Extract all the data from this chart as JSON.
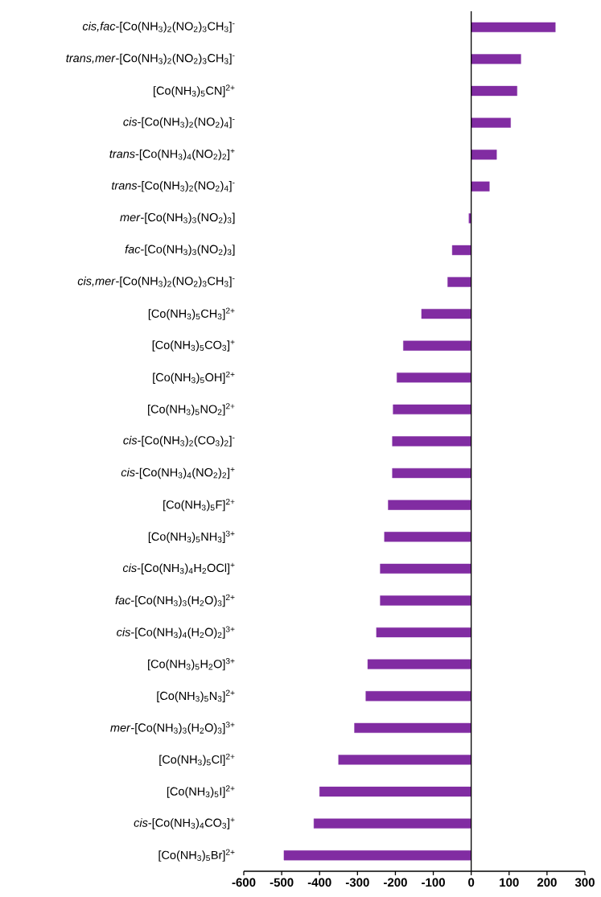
{
  "chart_data": {
    "type": "bar",
    "orientation": "horizontal",
    "color": "#812ca2",
    "categories": [
      "*cis,fac*-[Co(NH$_{3}$)$_{2}$(NO$_{2}$)$_{3}$CH$_{3}$]$^{-}$",
      "*trans,mer*-[Co(NH$_{3}$)$_{2}$(NO$_{2}$)$_{3}$CH$_{3}$]$^{-}$",
      "[Co(NH$_{3}$)$_{5}$CN]$^{2+}$",
      "*cis*-[Co(NH$_{3}$)$_{2}$(NO$_{2}$)$_{4}$]$^{-}$",
      "*trans*-[Co(NH$_{3}$)$_{4}$(NO$_{2}$)$_{2}$]$^{+}$",
      "*trans*-[Co(NH$_{3}$)$_{2}$(NO$_{2}$)$_{4}$]$^{-}$",
      "*mer*-[Co(NH$_{3}$)$_{3}$(NO$_{2}$)$_{3}$]",
      "*fac*-[Co(NH$_{3}$)$_{3}$(NO$_{2}$)$_{3}$]",
      "*cis,mer*-[Co(NH$_{3}$)$_{2}$(NO$_{2}$)$_{3}$CH$_{3}$]$^{-}$",
      "[Co(NH$_{3}$)$_{5}$CH$_{3}$]$^{2+}$",
      "[Co(NH$_{3}$)$_{5}$CO$_{3}$]$^{+}$",
      "[Co(NH$_{3}$)$_{5}$OH]$^{2+}$",
      "[Co(NH$_{3}$)$_{5}$NO$_{2}$]$^{2+}$",
      "*cis*-[Co(NH$_{3}$)$_{2}$(CO$_{3}$)$_{2}$]$^{-}$",
      "*cis*-[Co(NH$_{3}$)$_{4}$(NO$_{2}$)$_{2}$]$^{+}$",
      "[Co(NH$_{3}$)$_{5}$F]$^{2+}$",
      "[Co(NH$_{3}$)$_{5}$NH$_{3}$]$^{3+}$",
      "*cis*-[Co(NH$_{3}$)$_{4}$H$_{2}$OCl]$^{+}$",
      "*fac*-[Co(NH$_{3}$)$_{3}$(H$_{2}$O)$_{3}$]$^{2+}$",
      "*cis*-[Co(NH$_{3}$)$_{4}$(H$_{2}$O)$_{2}$]$^{3+}$",
      "[Co(NH$_{3}$)$_{5}$H$_{2}$O]$^{3+}$",
      "[Co(NH$_{3}$)$_{5}$N$_{3}$]$^{2+}$",
      "*mer*-[Co(NH$_{3}$)$_{3}$(H$_{2}$O)$_{3}$]$^{3+}$",
      "[Co(NH$_{3}$)$_{5}$Cl]$^{2+}$",
      "[Co(NH$_{3}$)$_{5}$I]$^{2+}$",
      "*cis*-[Co(NH$_{3}$)$_{4}$CO$_{3}$]$^{+}$",
      "[Co(NH$_{3}$)$_{5}$Br]$^{2+}$"
    ],
    "values": [
      222,
      131,
      121,
      104,
      67,
      48,
      -6,
      -50,
      -62,
      -131,
      -179,
      -196,
      -206,
      -208,
      -208,
      -219,
      -229,
      -240,
      -240,
      -250,
      -273,
      -278,
      -308,
      -350,
      -400,
      -415,
      -494
    ],
    "xlim": [
      -600,
      300
    ],
    "xticks": [
      -600,
      -500,
      -400,
      -300,
      -200,
      -100,
      0,
      100,
      200,
      300
    ]
  }
}
